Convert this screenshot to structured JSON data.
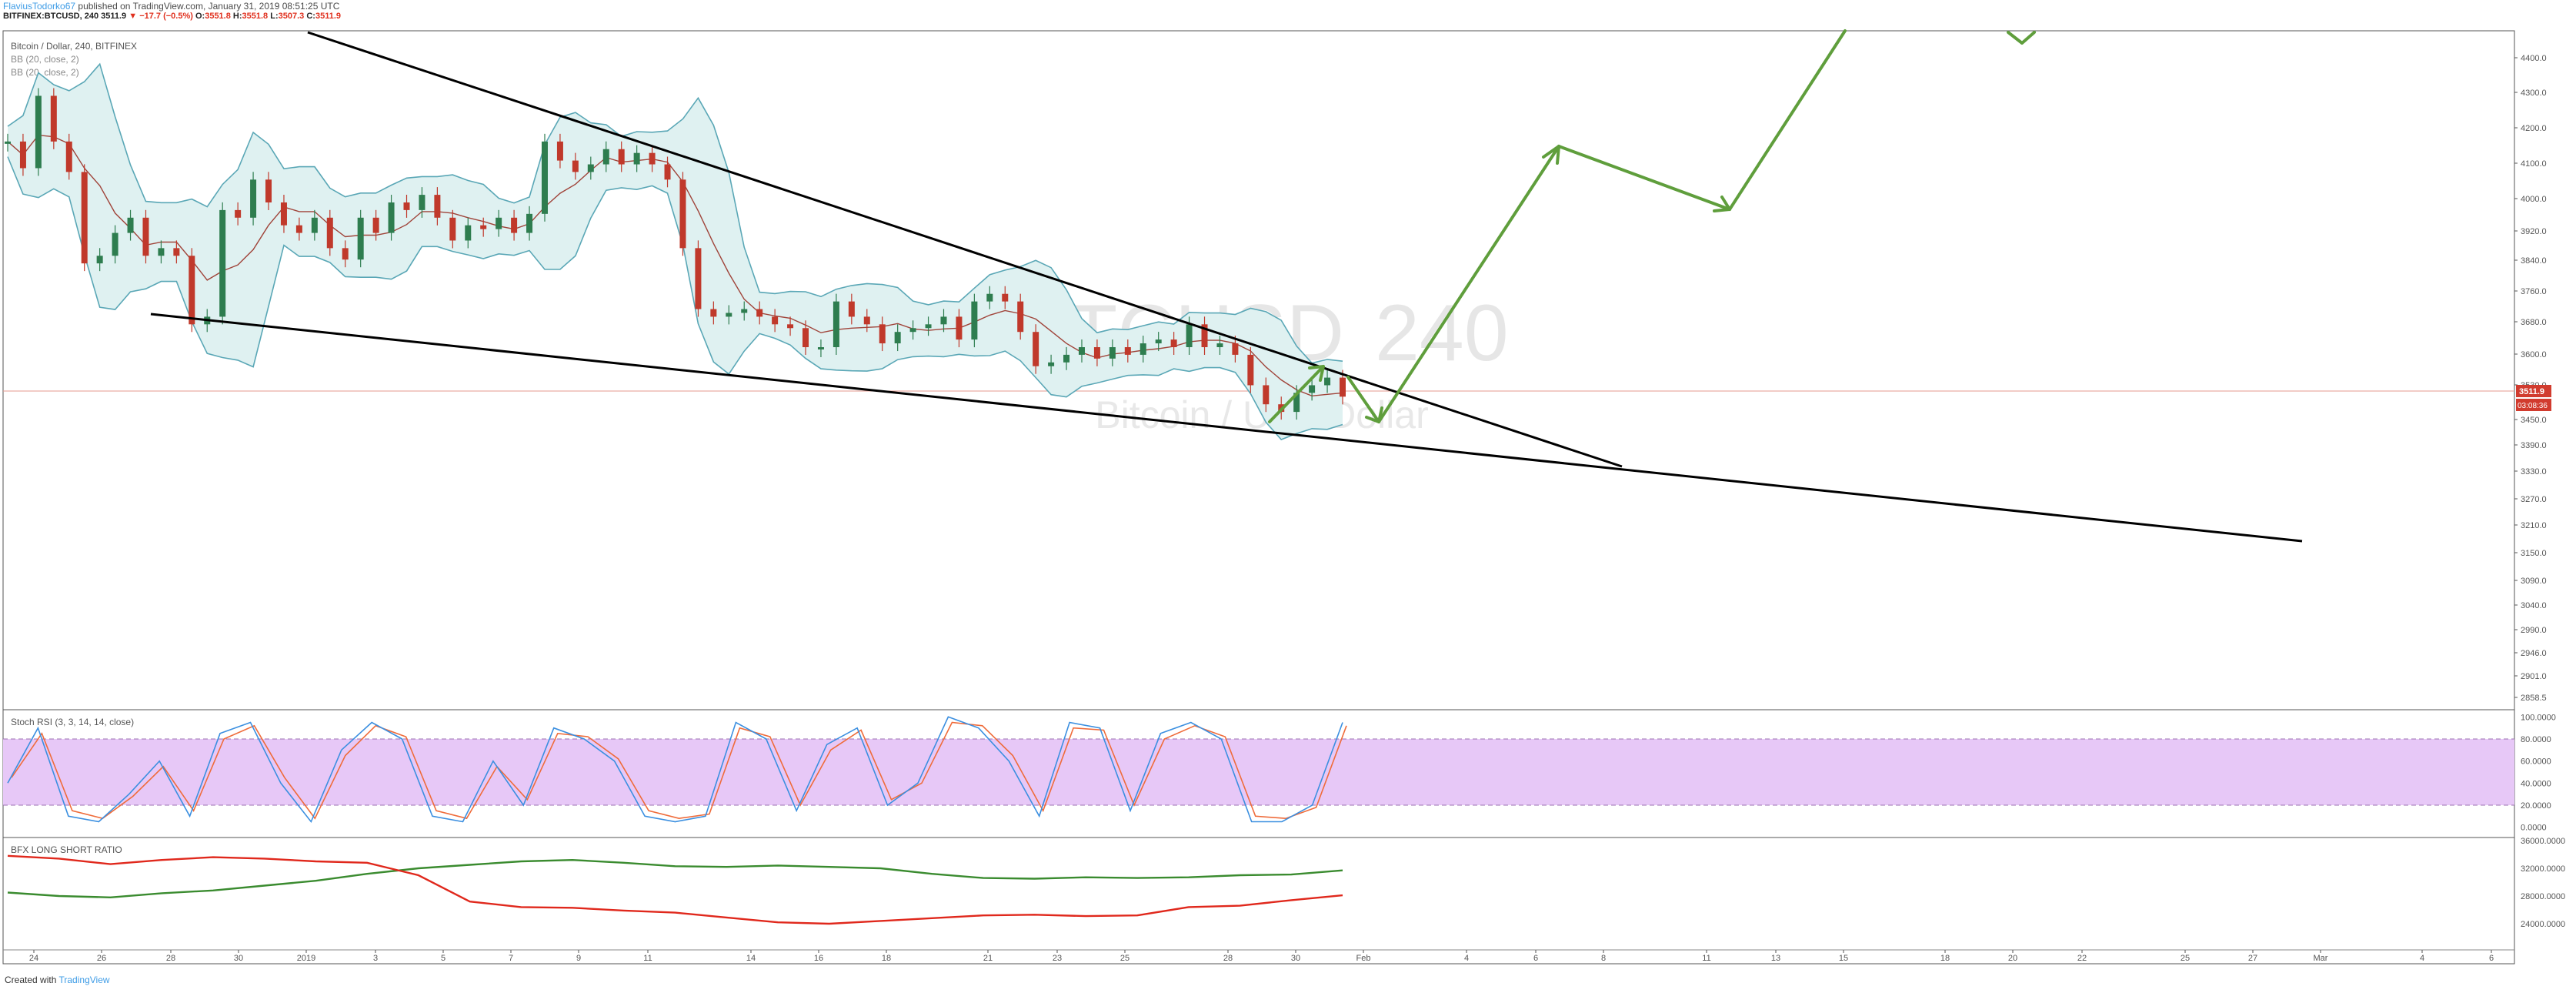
{
  "header": {
    "author": "FlaviusTodorko67",
    "published": "published on TradingView.com, January 31, 2019 08:51:25 UTC",
    "symbol": "BITFINEX:BTCUSD, 240",
    "last": "3511.9",
    "change": "▼ −17.7 (−0.5%)",
    "o_label": "O:",
    "o": "3551.8",
    "h_label": "H:",
    "h": "3551.8",
    "l_label": "L:",
    "l": "3507.3",
    "c_label": "C:",
    "c": "3511.9"
  },
  "legend": {
    "line1": "Bitcoin / Dollar, 240, BITFINEX",
    "line2": "BB (20, close, 2)",
    "line3": "BB (20, close, 2)"
  },
  "watermark": {
    "ticker": "BTCUSD",
    "interval": "240",
    "name": "Bitcoin / U.S. Dollar"
  },
  "price_tag": {
    "value": "3511.9",
    "countdown": "03:08:36"
  },
  "footer": {
    "created": "Created with",
    "brand": "TradingView"
  },
  "colors": {
    "bb": "#5aa7b6",
    "bb_fill": "#dff1f1",
    "sma": "#a0443a",
    "up": "#2e7d4f",
    "down": "#c0392b",
    "arrow": "#5f9e3c",
    "trend": "#000000",
    "k": "#3b8fe0",
    "d": "#ef6c3b",
    "rsi_band": "#e7c8f7",
    "long": "#3a8b2f",
    "short": "#e0281c",
    "tag": "#d13b2e"
  },
  "chart_data": [
    {
      "type": "candlestick",
      "title": "Bitcoin / Dollar, 240, BITFINEX",
      "y_ticks": [
        "4400.0",
        "4300.0",
        "4200.0",
        "4100.0",
        "4000.0",
        "3920.0",
        "3840.0",
        "3760.0",
        "3680.0",
        "3600.0",
        "3530.0",
        "3450.0",
        "3390.0",
        "3330.0",
        "3270.0",
        "3210.0",
        "3150.0",
        "3090.0",
        "3040.0",
        "2990.0",
        "2946.0",
        "2901.0",
        "2858.5"
      ],
      "x_ticks": [
        "24",
        "26",
        "28",
        "30",
        "2019",
        "3",
        "5",
        "7",
        "9",
        "11",
        "14",
        "16",
        "18",
        "21",
        "23",
        "25",
        "28",
        "30",
        "Feb",
        "4",
        "6",
        "8",
        "11",
        "13",
        "15",
        "18",
        "20",
        "22",
        "25",
        "27",
        "Mar",
        "4",
        "6"
      ],
      "price_path": [
        4180,
        4110,
        4300,
        4180,
        4100,
        3860,
        3880,
        3940,
        3980,
        3880,
        3900,
        3880,
        3700,
        3720,
        4000,
        3980,
        4080,
        4020,
        3960,
        3940,
        3980,
        3900,
        3870,
        3980,
        3940,
        4020,
        4000,
        4040,
        3980,
        3920,
        3960,
        3950,
        3980,
        3940,
        3990,
        4180,
        4130,
        4100,
        4120,
        4160,
        4120,
        4150,
        4120,
        4080,
        3900,
        3740,
        3720,
        3730,
        3740,
        3720,
        3700,
        3690,
        3640,
        3640,
        3760,
        3720,
        3700,
        3650,
        3680,
        3690,
        3700,
        3720,
        3660,
        3760,
        3780,
        3760,
        3680,
        3590,
        3600,
        3620,
        3640,
        3610,
        3640,
        3620,
        3650,
        3660,
        3640,
        3700,
        3640,
        3650,
        3620,
        3540,
        3490,
        3470,
        3520,
        3540,
        3560,
        3510
      ],
      "trendlines": "upper falling wedge line 4380→3340, lower line 3700→3150",
      "projection_arrows": [
        3560,
        3480,
        4110,
        3990,
        4440,
        4440
      ]
    },
    {
      "type": "line",
      "title": "Stoch RSI (3, 3, 14, 14, close)",
      "y_ticks": [
        "100.0000",
        "80.0000",
        "60.0000",
        "40.0000",
        "20.0000",
        "0.0000"
      ],
      "band": [
        20,
        80
      ],
      "series": [
        {
          "name": "%K",
          "values": [
            40,
            90,
            10,
            5,
            30,
            60,
            10,
            85,
            95,
            40,
            5,
            70,
            95,
            80,
            10,
            5,
            60,
            20,
            90,
            80,
            60,
            10,
            5,
            10,
            95,
            80,
            15,
            75,
            90,
            20,
            40,
            100,
            90,
            60,
            10,
            95,
            90,
            15,
            85,
            95,
            80,
            5,
            5,
            20,
            95
          ]
        },
        {
          "name": "%D",
          "values": [
            45,
            85,
            15,
            8,
            28,
            55,
            15,
            80,
            92,
            45,
            8,
            65,
            92,
            82,
            15,
            8,
            55,
            25,
            85,
            82,
            62,
            15,
            8,
            12,
            90,
            82,
            20,
            70,
            88,
            25,
            40,
            95,
            92,
            65,
            15,
            90,
            88,
            20,
            80,
            92,
            82,
            10,
            8,
            18,
            92
          ]
        }
      ]
    },
    {
      "type": "line",
      "title": "BFX LONG SHORT RATIO",
      "y_ticks": [
        "36000.0000",
        "32000.0000",
        "28000.0000",
        "24000.0000"
      ],
      "series": [
        {
          "name": "long",
          "values": [
            28500,
            28000,
            27800,
            28400,
            28800,
            29500,
            30200,
            31200,
            32000,
            32500,
            33000,
            33200,
            32800,
            32300,
            32200,
            32400,
            32200,
            32000,
            31200,
            30600,
            30500,
            30700,
            30600,
            30700,
            31000,
            31100,
            31700
          ]
        },
        {
          "name": "short",
          "values": [
            33800,
            33400,
            32600,
            33200,
            33600,
            33400,
            33000,
            32800,
            31000,
            27200,
            26400,
            26300,
            25900,
            25600,
            24900,
            24200,
            24000,
            24400,
            24800,
            25200,
            25300,
            25100,
            25200,
            26400,
            26600,
            27400,
            28100
          ]
        }
      ]
    }
  ]
}
